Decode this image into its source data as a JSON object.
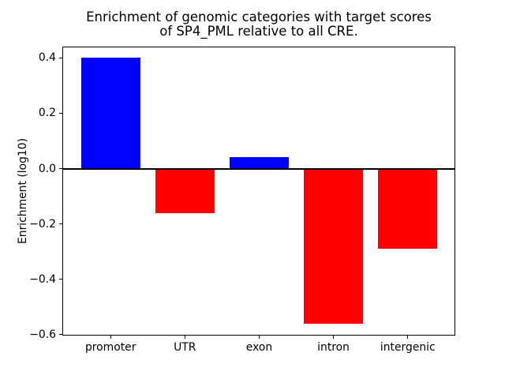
{
  "figure": {
    "background": "#ffffff",
    "title_lines": [
      "Enrichment of genomic categories with target scores",
      "of SP4_PML relative to all CRE."
    ]
  },
  "chart_data": {
    "type": "bar",
    "title": "Enrichment of genomic categories with target scores\nof SP4_PML relative to all CRE.",
    "categories": [
      "promoter",
      "UTR",
      "exon",
      "intron",
      "intergenic"
    ],
    "values": [
      0.4,
      -0.16,
      0.04,
      -0.56,
      -0.29
    ],
    "bar_colors": [
      "#0000ff",
      "#ff0000",
      "#0000ff",
      "#ff0000",
      "#ff0000"
    ],
    "positive_color": "#0000ff",
    "negative_color": "#ff0000",
    "xlabel": "",
    "ylabel": "Enrichment (log10)",
    "ylim": [
      -0.604,
      0.441
    ],
    "yticks": [
      0.4,
      0.2,
      0.0,
      -0.2,
      -0.4,
      -0.6
    ],
    "ytick_labels": [
      "0.4",
      "0.2",
      "0.0",
      "−0.2",
      "−0.4",
      "−0.6"
    ],
    "bar_width": 0.8,
    "zero_line": true,
    "zero_line_color": "#000000",
    "grid": false,
    "legend_position": "none",
    "axis_color": "#000000",
    "text_color": "#000000"
  }
}
